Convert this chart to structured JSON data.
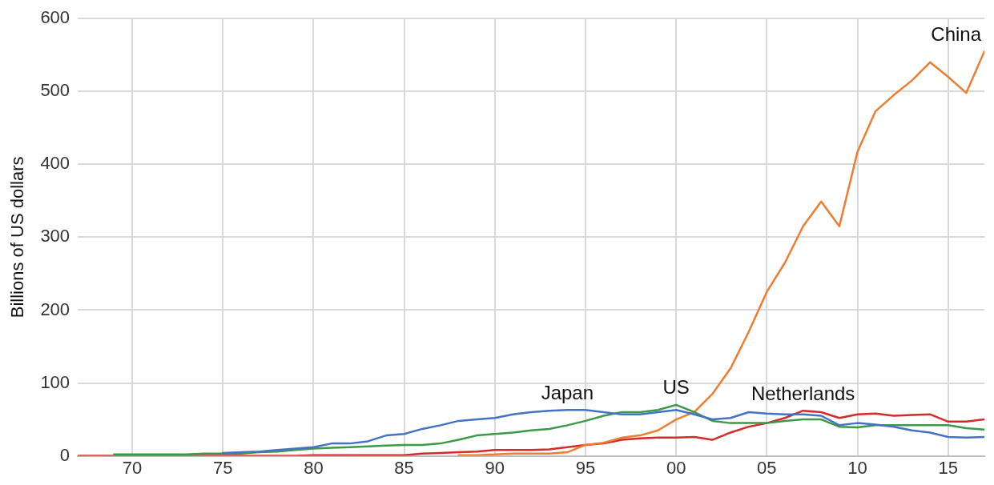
{
  "chart_data": {
    "type": "line",
    "ylabel": "Billions of US dollars",
    "x": [
      1967,
      1968,
      1969,
      1970,
      1971,
      1972,
      1973,
      1974,
      1975,
      1976,
      1977,
      1978,
      1979,
      1980,
      1981,
      1982,
      1983,
      1984,
      1985,
      1986,
      1987,
      1988,
      1989,
      1990,
      1991,
      1992,
      1993,
      1994,
      1995,
      1996,
      1997,
      1998,
      1999,
      2000,
      2001,
      2002,
      2003,
      2004,
      2005,
      2006,
      2007,
      2008,
      2009,
      2010,
      2011,
      2012,
      2013,
      2014,
      2015,
      2016,
      2017
    ],
    "series": [
      {
        "name": "Japan",
        "color": "#4472c4",
        "values": [
          null,
          null,
          null,
          null,
          null,
          null,
          null,
          null,
          4,
          5,
          6,
          8,
          10,
          12,
          17,
          17,
          20,
          28,
          30,
          37,
          42,
          48,
          50,
          52,
          57,
          60,
          62,
          63,
          63,
          60,
          57,
          57,
          60,
          63,
          57,
          50,
          52,
          60,
          58,
          57,
          57,
          55,
          42,
          45,
          43,
          40,
          35,
          32,
          26,
          25,
          26
        ]
      },
      {
        "name": "US",
        "color": "#3a9a47",
        "values": [
          null,
          null,
          2,
          2,
          2,
          2,
          2,
          3,
          3,
          3,
          5,
          6,
          8,
          10,
          11,
          12,
          13,
          14,
          15,
          15,
          17,
          22,
          28,
          30,
          32,
          35,
          37,
          42,
          48,
          55,
          60,
          60,
          63,
          70,
          60,
          48,
          45,
          45,
          45,
          48,
          50,
          50,
          40,
          39,
          42,
          42,
          42,
          42,
          42,
          38,
          36
        ]
      },
      {
        "name": "China",
        "color": "#ed7d31",
        "values": [
          null,
          null,
          null,
          null,
          null,
          null,
          null,
          null,
          null,
          null,
          null,
          null,
          null,
          null,
          null,
          null,
          null,
          null,
          null,
          null,
          null,
          1,
          1,
          2,
          3,
          3,
          3,
          5,
          15,
          18,
          25,
          28,
          35,
          50,
          60,
          85,
          120,
          170,
          225,
          265,
          315,
          349,
          315,
          417,
          473,
          495,
          515,
          540,
          520,
          498,
          555
        ]
      },
      {
        "name": "Netherlands",
        "color": "#d42a2a",
        "values": [
          0,
          0,
          0,
          0,
          0,
          0,
          0,
          0,
          0,
          0,
          0,
          0,
          0,
          1,
          1,
          1,
          1,
          1,
          1,
          3,
          4,
          5,
          6,
          8,
          8,
          8,
          9,
          12,
          15,
          17,
          22,
          24,
          25,
          25,
          26,
          22,
          32,
          40,
          45,
          52,
          62,
          60,
          52,
          57,
          58,
          55,
          56,
          57,
          47,
          47,
          50
        ]
      }
    ],
    "xlim": [
      1967,
      2017
    ],
    "xticks": [
      {
        "value": 1970,
        "label": "70"
      },
      {
        "value": 1975,
        "label": "75"
      },
      {
        "value": 1980,
        "label": "80"
      },
      {
        "value": 1985,
        "label": "85"
      },
      {
        "value": 1990,
        "label": "90"
      },
      {
        "value": 1995,
        "label": "95"
      },
      {
        "value": 2000,
        "label": "00"
      },
      {
        "value": 2005,
        "label": "05"
      },
      {
        "value": 2010,
        "label": "10"
      },
      {
        "value": 2015,
        "label": "15"
      }
    ],
    "ylim": [
      0,
      600
    ],
    "yticks": [
      0,
      100,
      200,
      300,
      400,
      500,
      600
    ],
    "grid": true,
    "legend": false,
    "marker": "none",
    "line_style": "solid"
  }
}
